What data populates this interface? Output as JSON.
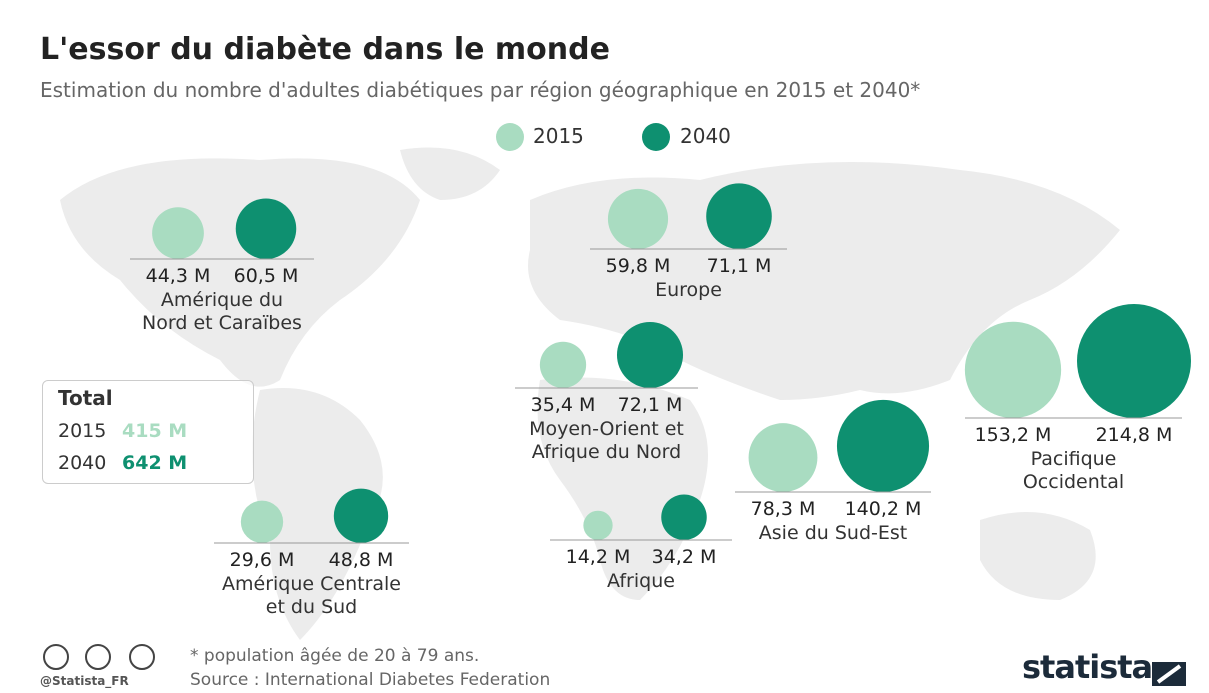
{
  "chart_data": {
    "type": "bubble",
    "title": "L'essor du diabète dans le monde",
    "subtitle": "Estimation du nombre d'adultes diabétiques par région géographique en 2015 et 2040*",
    "categories": [
      "Amérique du\nNord et Caraïbes",
      "Europe",
      "Moyen-Orient et\nAfrique du Nord",
      "Afrique",
      "Amérique Centrale\net du Sud",
      "Asie du Sud-Est",
      "Pacifique\nOccidental"
    ],
    "series": [
      {
        "name": "2015",
        "color": "#a9dcc1",
        "values": [
          44.3,
          59.8,
          35.4,
          14.2,
          29.6,
          78.3,
          153.2
        ],
        "value_labels": [
          "44,3 M",
          "59,8 M",
          "35,4 M",
          "14,2 M",
          "29,6 M",
          "78,3 M",
          "153,2 M"
        ]
      },
      {
        "name": "2040",
        "color": "#0e9070",
        "values": [
          60.5,
          71.1,
          72.1,
          34.2,
          48.8,
          140.2,
          214.8
        ],
        "value_labels": [
          "60,5 M",
          "71,1 M",
          "72,1 M",
          "34,2 M",
          "48,8 M",
          "140,2 M",
          "214,8 M"
        ]
      }
    ],
    "totals": {
      "label": "Total",
      "years": [
        "2015",
        "2040"
      ],
      "values": [
        415,
        642
      ],
      "value_labels": [
        "415 M",
        "642 M"
      ]
    },
    "footnote": "* population âgée de 20 à 79 ans.",
    "source": "Source : International Diabetes Federation",
    "handle": "@Statista_FR",
    "brand": "statista"
  }
}
